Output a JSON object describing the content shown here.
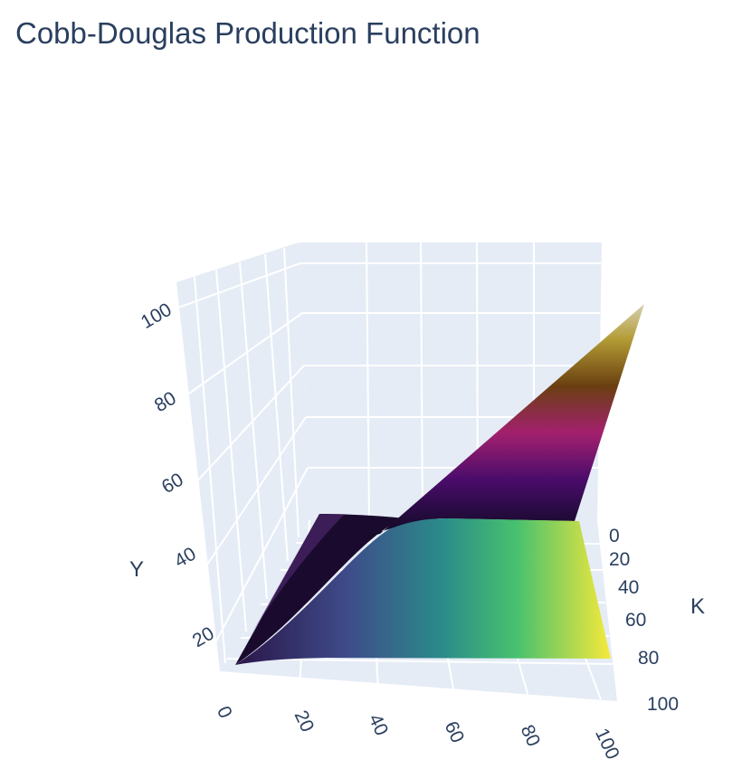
{
  "chart_data": {
    "type": "surface",
    "title": "Cobb-Douglas Production Function",
    "axes": {
      "x": {
        "label": "",
        "range": [
          0,
          100
        ],
        "ticks": [
          "0",
          "20",
          "40",
          "60",
          "80",
          "100"
        ]
      },
      "y": {
        "label": "K",
        "range": [
          0,
          100
        ],
        "ticks": [
          "0",
          "20",
          "40",
          "60",
          "80",
          "100"
        ]
      },
      "z": {
        "label": "Y",
        "range": [
          0,
          105
        ],
        "ticks": [
          "20",
          "40",
          "60",
          "80",
          "100"
        ]
      }
    },
    "grid": true,
    "background_color": "#e5ecf6",
    "surfaces": [
      {
        "colorscale": "viridis",
        "grid_x": [
          0,
          20,
          40,
          60,
          80,
          100
        ],
        "grid_y": [
          0,
          20,
          40,
          60,
          80,
          100
        ],
        "z": [
          [
            0,
            0,
            0,
            0,
            0,
            0
          ],
          [
            0,
            20,
            20,
            20,
            20,
            20
          ],
          [
            0,
            20,
            40,
            40,
            40,
            40
          ],
          [
            0,
            20,
            40,
            60,
            60,
            60
          ],
          [
            0,
            20,
            40,
            60,
            80,
            80
          ],
          [
            0,
            20,
            40,
            60,
            80,
            100
          ]
        ]
      },
      {
        "colorscale": "inferno",
        "grid_x": [
          0,
          20,
          40,
          60,
          80,
          100
        ],
        "grid_y": [
          0,
          20,
          40,
          60,
          80,
          100
        ],
        "z": [
          [
            0,
            0,
            0,
            0,
            0,
            0
          ],
          [
            0,
            13,
            16,
            18,
            19,
            20
          ],
          [
            0,
            16,
            26,
            30,
            33,
            35
          ],
          [
            0,
            18,
            30,
            39,
            43,
            46
          ],
          [
            0,
            19,
            33,
            43,
            52,
            56
          ],
          [
            0,
            20,
            35,
            46,
            56,
            66
          ]
        ]
      }
    ]
  }
}
